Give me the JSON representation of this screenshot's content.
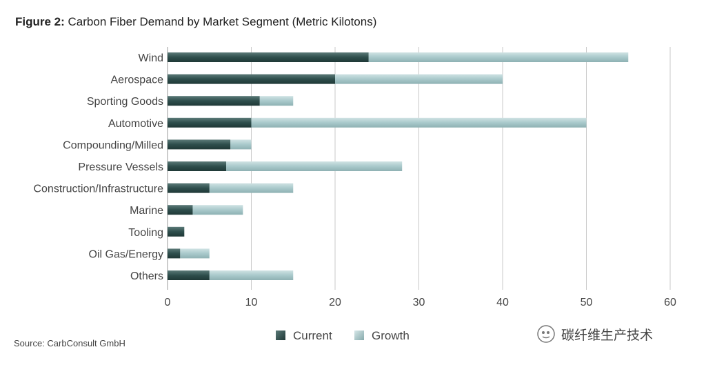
{
  "figure": {
    "label": "Figure 2:",
    "title": "Carbon Fiber Demand by Market Segment (Metric Kilotons)"
  },
  "source": "Source: CarbConsult GmbH",
  "watermark": "碳纤维生产技术",
  "colors": {
    "current": "#2e4e4c",
    "growth": "#a9c9cb",
    "grid": "#c8c8c8",
    "text": "#444444"
  },
  "chart_data": {
    "type": "bar",
    "orientation": "horizontal",
    "stacked": true,
    "categories": [
      "Wind",
      "Aerospace",
      "Sporting Goods",
      "Automotive",
      "Compounding/Milled",
      "Pressure Vessels",
      "Construction/Infrastructure",
      "Marine",
      "Tooling",
      "Oil Gas/Energy",
      "Others"
    ],
    "series": [
      {
        "name": "Current",
        "values": [
          24,
          20,
          11,
          10,
          7.5,
          7,
          5,
          3,
          2,
          1.5,
          5
        ]
      },
      {
        "name": "Growth",
        "values": [
          31,
          20,
          4,
          40,
          2.5,
          21,
          10,
          6,
          0,
          3.5,
          10
        ]
      }
    ],
    "xlim": [
      0,
      60
    ],
    "xticks": [
      0,
      10,
      20,
      30,
      40,
      50,
      60
    ],
    "grid": "vertical",
    "legend": "bottom-center"
  }
}
